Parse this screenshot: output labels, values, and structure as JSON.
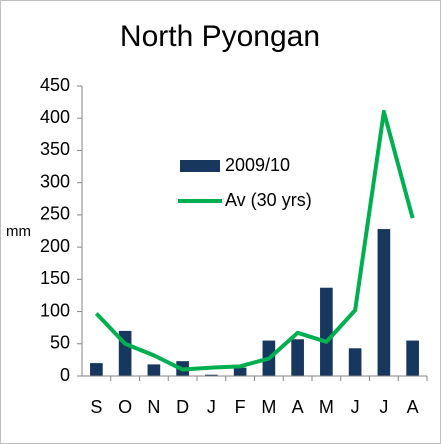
{
  "chart_data": {
    "type": "combo",
    "title": "North Pyongan",
    "y_label": "mm",
    "categories": [
      "S",
      "O",
      "N",
      "D",
      "J",
      "F",
      "M",
      "A",
      "M",
      "J",
      "J",
      "A"
    ],
    "series": [
      {
        "name": "2009/10",
        "type": "bar",
        "color": "#17375e",
        "values": [
          20,
          70,
          18,
          23,
          2,
          13,
          55,
          57,
          137,
          43,
          228,
          55
        ]
      },
      {
        "name": "Av (30 yrs)",
        "type": "line",
        "color": "#00b050",
        "values": [
          97,
          50,
          32,
          10,
          13,
          15,
          27,
          67,
          53,
          102,
          410,
          245
        ]
      }
    ],
    "ylim": [
      0,
      450
    ],
    "yticks": [
      0,
      50,
      100,
      150,
      200,
      250,
      300,
      350,
      400,
      450
    ],
    "grid": false
  }
}
